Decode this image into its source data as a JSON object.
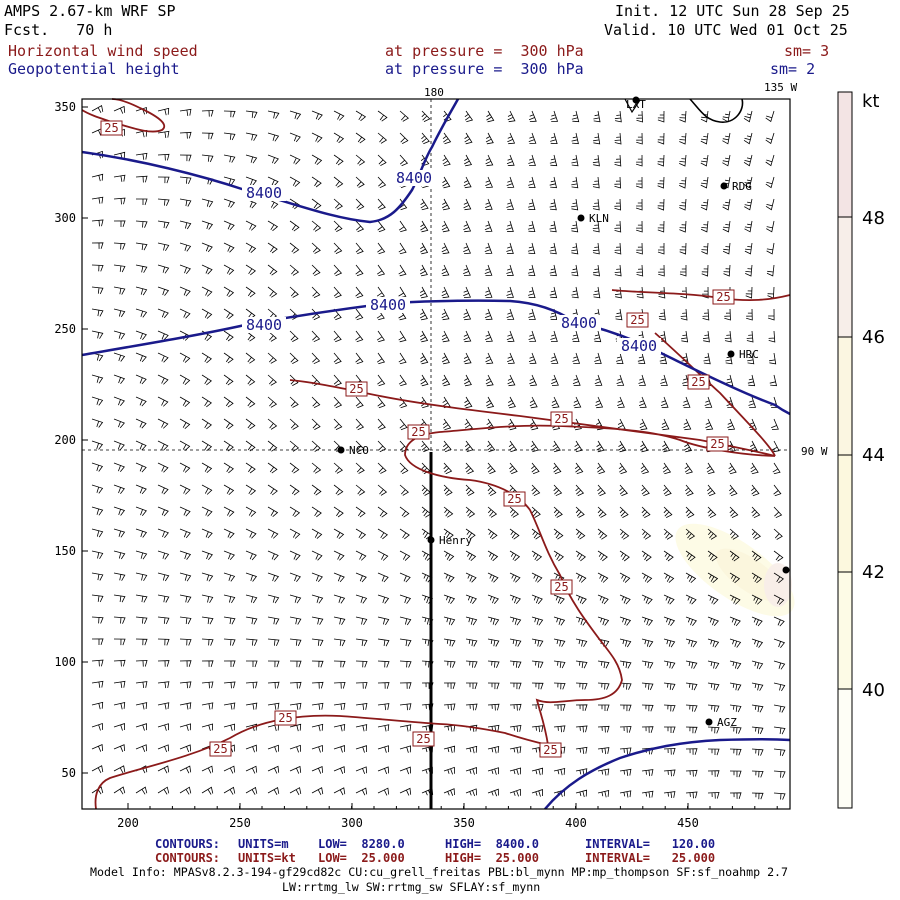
{
  "header": {
    "model_title": "AMPS 2.67-km WRF SP",
    "forecast": "Fcst.   70 h",
    "init": "Init. 12 UTC Sun 28 Sep 25",
    "valid": "Valid. 10 UTC Wed 01 Oct 25",
    "field1_name": "Horizontal wind speed",
    "field1_level": "at pressure =  300 hPa",
    "field1_smooth": "sm= 3",
    "field2_name": "Geopotential height",
    "field2_level": "at pressure =  300 hPa",
    "field2_smooth": "sm= 2"
  },
  "map": {
    "lon_labels": {
      "top_180": "180",
      "top_135w": "135 W",
      "right_90w": "90 W"
    },
    "x_ticks": [
      "200",
      "250",
      "300",
      "350",
      "400",
      "450"
    ],
    "y_ticks": [
      "350",
      "300",
      "250",
      "200",
      "150",
      "100",
      "50"
    ],
    "stations": [
      {
        "name": "LXT",
        "label": "LXT"
      },
      {
        "name": "RDG",
        "label": "RDG"
      },
      {
        "name": "KLN",
        "label": "KLN"
      },
      {
        "name": "HRC",
        "label": "HRC"
      },
      {
        "name": "NCO",
        "label": "NCO"
      },
      {
        "name": "Henry",
        "label": "Henry"
      },
      {
        "name": "AGZ",
        "label": "AGZ"
      },
      {
        "name": "east-edge-station",
        "label": ""
      }
    ],
    "height_contour_labels": [
      "8400",
      "8400",
      "8400",
      "8400",
      "8400"
    ],
    "wind_contour_labels": [
      "25",
      "25",
      "25",
      "25",
      "25",
      "25",
      "25",
      "25",
      "25",
      "25",
      "25",
      "25",
      "25",
      "25"
    ]
  },
  "colorbar": {
    "unit": "kt",
    "ticks": [
      "48",
      "46",
      "44",
      "42",
      "40"
    ],
    "colors": {
      "c48": "#f4e6e6",
      "c46": "#f7efe9",
      "c44": "#fbf7dc",
      "c42": "#fdfbe3",
      "c40": "#fefdf0"
    }
  },
  "footer": {
    "c1_label": "CONTOURS:",
    "c1_units": "UNITS=m",
    "c1_low": "LOW=  8280.0",
    "c1_high": "HIGH=  8400.0",
    "c1_interval": "INTERVAL=   120.00",
    "c2_label": "CONTOURS:",
    "c2_units": "UNITS=kt",
    "c2_low": "LOW=  25.000",
    "c2_high": "HIGH=  25.000",
    "c2_interval": "INTERVAL=   25.000",
    "model_info": "Model Info: MPASv8.2.3-194-gf29cd82c CU:cu_grell_freitas PBL:bl_mynn MP:mp_thompson SF:sf_noahmp 2.7",
    "model_info2": "LW:rrtmg_lw SW:rrtmg_sw SFLAY:sf_mynn"
  },
  "colors": {
    "wind": "#8b1a1a",
    "height": "#1a1a8b",
    "ink": "#000000"
  }
}
